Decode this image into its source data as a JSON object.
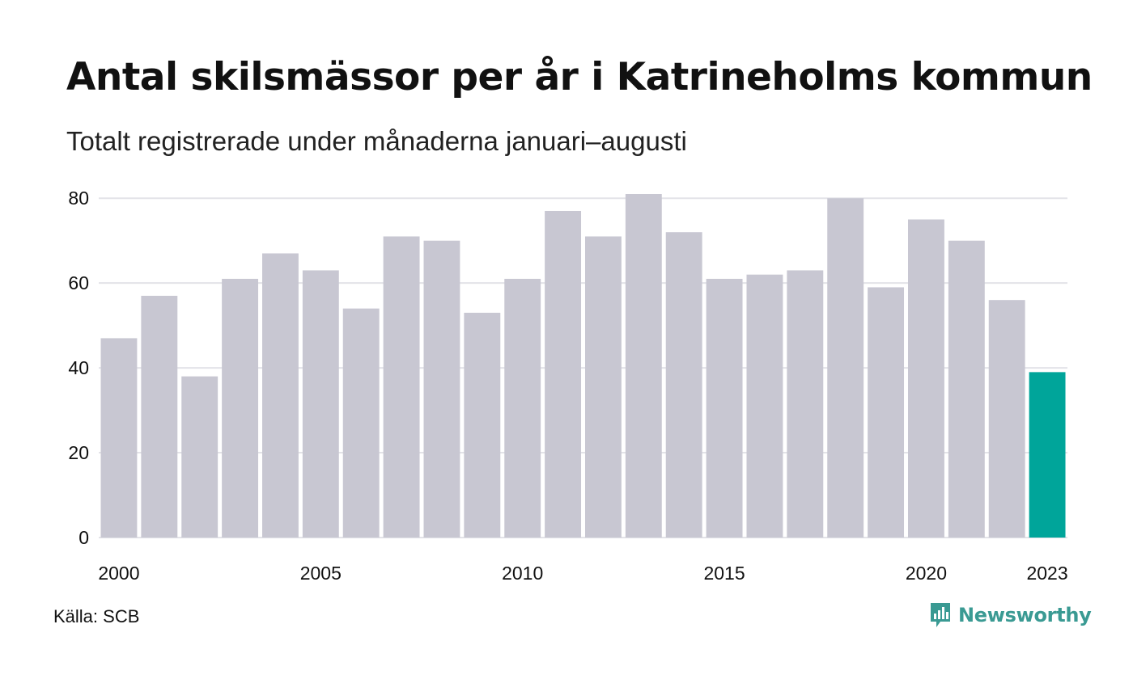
{
  "title": "Antal skilsmässor per år i Katrineholms kommun",
  "subtitle": "Totalt registrerade under månaderna januari–augusti",
  "source": "Källa: SCB",
  "logo_text": "Newsworthy",
  "colors": {
    "bar": "#c8c7d2",
    "highlight": "#00a59a",
    "grid": "#e3e3e8",
    "logo": "#3a9a93"
  },
  "chart_data": {
    "type": "bar",
    "categories": [
      "2000",
      "2001",
      "2002",
      "2003",
      "2004",
      "2005",
      "2006",
      "2007",
      "2008",
      "2009",
      "2010",
      "2011",
      "2012",
      "2013",
      "2014",
      "2015",
      "2016",
      "2017",
      "2018",
      "2019",
      "2020",
      "2021",
      "2022",
      "2023"
    ],
    "values": [
      47,
      57,
      38,
      61,
      67,
      63,
      54,
      71,
      70,
      53,
      61,
      77,
      71,
      81,
      72,
      61,
      62,
      63,
      80,
      59,
      75,
      70,
      56,
      39
    ],
    "highlight_index": 23,
    "x_tick_labels": [
      "2000",
      "2005",
      "2010",
      "2015",
      "2020",
      "2023"
    ],
    "y_ticks": [
      0,
      20,
      40,
      60,
      80
    ],
    "ylim": [
      0,
      81
    ],
    "xlabel": "",
    "ylabel": "",
    "grid": true,
    "legend": "none"
  }
}
